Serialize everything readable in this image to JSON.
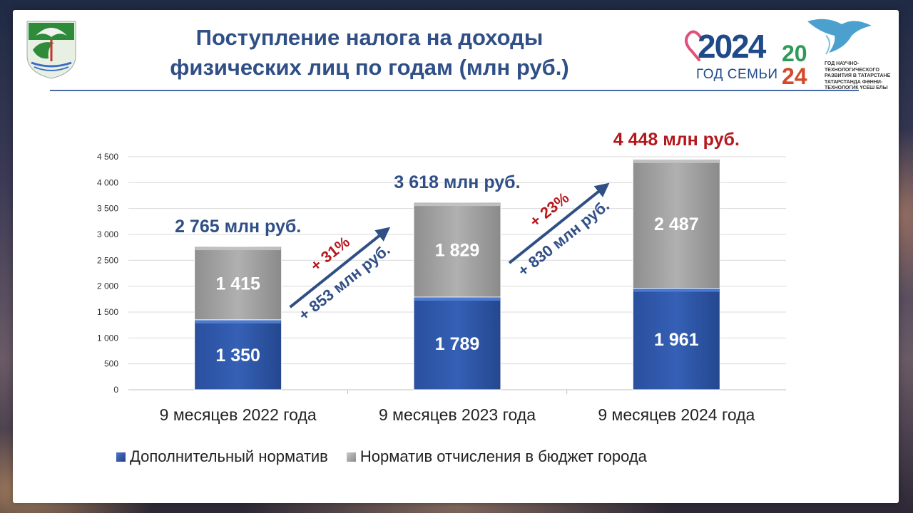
{
  "title_line1": "Поступление налога на доходы",
  "title_line2": "физических лиц по годам (млн руб.)",
  "logo": {
    "year": "2024",
    "family": "ГОД СЕМЬИ",
    "year2": "2024",
    "caption": "ГОД НАУЧНО-ТЕХНОЛОГИЧЕСКОГО РАЗВИТИЯ В ТАТАРСТАНЕ ТАТАРСТАНДА ФӘННИ-ТЕХНОЛОГИК ҮСЕШ ЕЛЫ"
  },
  "colors": {
    "title": "#2f4f86",
    "blue_series": "#2e55a8",
    "gray_series": "#9e9e9e",
    "total_blue": "#2f4f86",
    "total_red": "#b5171c",
    "growth_red": "#b5171c",
    "growth_blue": "#2f4f86"
  },
  "chart_data": {
    "type": "bar",
    "stacked": true,
    "categories": [
      "9 месяцев 2022 года",
      "9 месяцев 2023 года",
      "9 месяцев 2024 года"
    ],
    "series": [
      {
        "name": "Дополнительный норматив",
        "values": [
          1350,
          1789,
          1961
        ]
      },
      {
        "name": "Норматив отчисления в бюджет города",
        "values": [
          1415,
          1829,
          2487
        ]
      }
    ],
    "value_labels": [
      [
        "1 350",
        "1 789",
        "1 961"
      ],
      [
        "1 415",
        "1 829",
        "2 487"
      ]
    ],
    "totals": [
      2765,
      3618,
      4448
    ],
    "total_labels": [
      "2 765 млн руб.",
      "3 618 млн руб.",
      "4 448 млн руб."
    ],
    "growth": [
      {
        "percent": "+ 31%",
        "amount": "+ 853 млн руб."
      },
      {
        "percent": "+ 23%",
        "amount": "+ 830 млн руб."
      }
    ],
    "ylim": [
      0,
      4500
    ],
    "yticks": [
      0,
      500,
      1000,
      1500,
      2000,
      2500,
      3000,
      3500,
      4000,
      4500
    ],
    "ytick_labels": [
      "0",
      "500",
      "1 000",
      "1 500",
      "2 000",
      "2 500",
      "3 000",
      "3 500",
      "4 000",
      "4 500"
    ],
    "grid": true,
    "legend": "bottom"
  }
}
